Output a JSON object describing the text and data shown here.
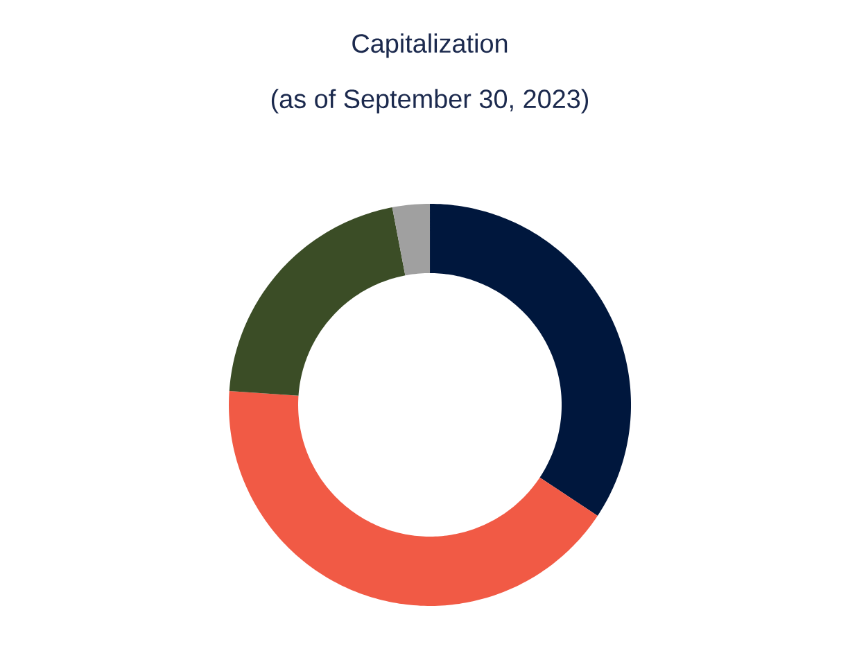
{
  "chart_data": {
    "type": "donut",
    "title": "Capitalization",
    "subtitle": "(as of September 30, 2023)",
    "categories": [
      null,
      null,
      null,
      null
    ],
    "values": [
      34.3,
      41.8,
      20.9,
      3.0
    ],
    "colors": [
      "#00173d",
      "#f15a45",
      "#3b4d26",
      "#a0a0a0"
    ]
  }
}
